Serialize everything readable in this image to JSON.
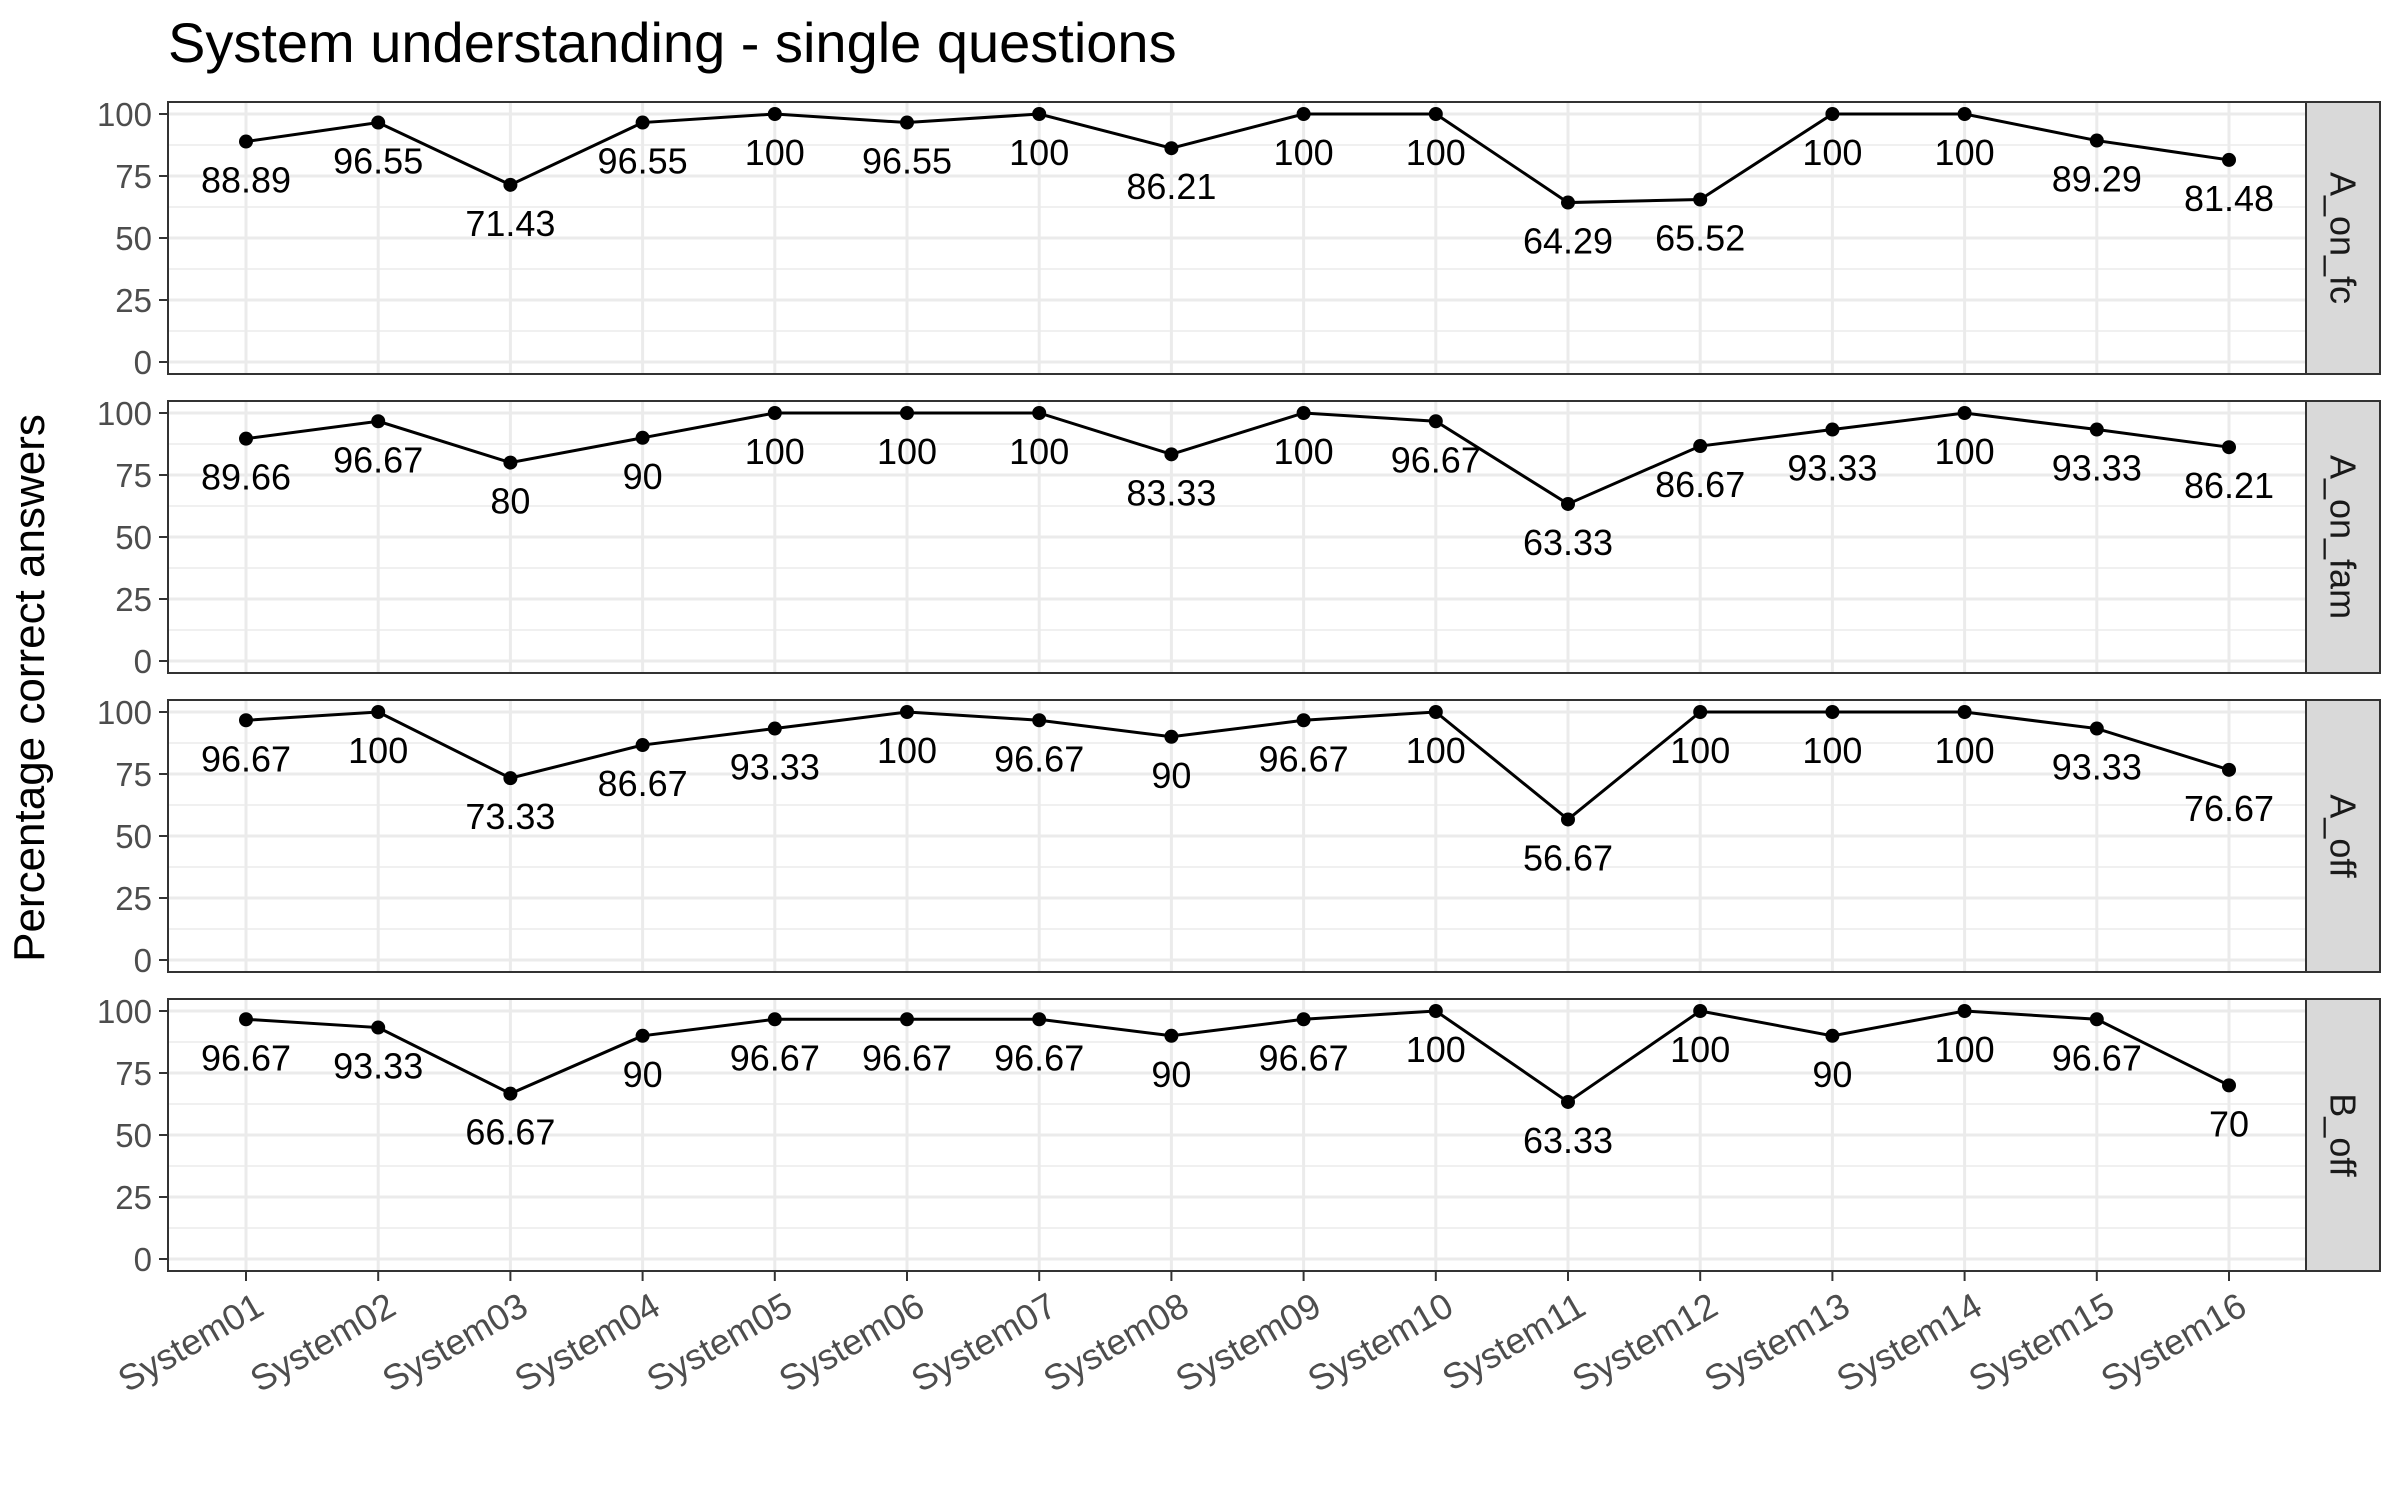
{
  "chart_data": {
    "type": "line",
    "title": "System understanding - single questions",
    "xlabel": "",
    "ylabel": "Percentage correct answers",
    "ylim": [
      0,
      100
    ],
    "yticks": [
      0,
      25,
      50,
      75,
      100
    ],
    "grid": true,
    "categories": [
      "System01",
      "System02",
      "System03",
      "System04",
      "System05",
      "System06",
      "System07",
      "System08",
      "System09",
      "System10",
      "System11",
      "System12",
      "System13",
      "System14",
      "System15",
      "System16"
    ],
    "facets": [
      {
        "name": "A_on_fc",
        "values": [
          88.89,
          96.55,
          71.43,
          96.55,
          100,
          96.55,
          100,
          86.21,
          100,
          100,
          64.29,
          65.52,
          100,
          100,
          89.29,
          81.48
        ]
      },
      {
        "name": "A_on_fam",
        "values": [
          89.66,
          96.67,
          80,
          90,
          100,
          100,
          100,
          83.33,
          100,
          96.67,
          63.33,
          86.67,
          93.33,
          100,
          93.33,
          86.21
        ]
      },
      {
        "name": "A_off",
        "values": [
          96.67,
          100,
          73.33,
          86.67,
          93.33,
          100,
          96.67,
          90,
          96.67,
          100,
          56.67,
          100,
          100,
          100,
          93.33,
          76.67
        ]
      },
      {
        "name": "B_off",
        "values": [
          96.67,
          93.33,
          66.67,
          90,
          96.67,
          96.67,
          96.67,
          90,
          96.67,
          100,
          63.33,
          100,
          90,
          100,
          96.67,
          70
        ]
      }
    ],
    "colors": {
      "line": "#000000",
      "grid": "#ebebeb",
      "strip_fill": "#d9d9d9",
      "panel_border": "#333333"
    }
  }
}
